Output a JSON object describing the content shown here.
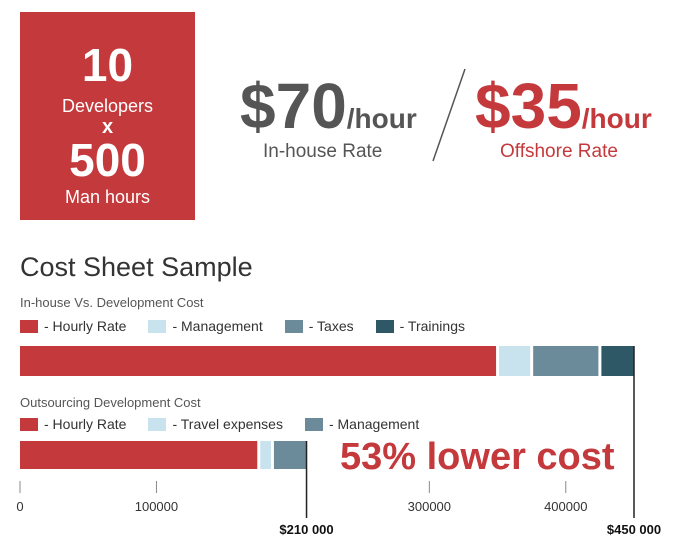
{
  "hero": {
    "developers_count": "10",
    "developers_label": "Developers",
    "multiplier": "x",
    "hours_count": "500",
    "hours_label": "Man hours"
  },
  "rates": {
    "inhouse": {
      "value": "$70",
      "unit": "/hour",
      "label": "In-house Rate"
    },
    "offshore": {
      "value": "$35",
      "unit": "/hour",
      "label": "Offshore Rate"
    }
  },
  "section_title": "Cost Sheet Sample",
  "savings_text": "53% lower cost",
  "colors": {
    "brand_red": "#c4393c",
    "management_light": "#c8e2ee",
    "taxes_slate": "#6b8a9a",
    "trainings_dark": "#2f5866"
  },
  "chart_data": [
    {
      "type": "bar",
      "orientation": "horizontal",
      "stacked": true,
      "title": "In-house Vs. Development Cost",
      "series": [
        {
          "name": "- Hourly Rate",
          "value": 350000,
          "color": "#c4393c"
        },
        {
          "name": "- Management",
          "value": 25000,
          "color": "#c8e2ee"
        },
        {
          "name": "- Taxes",
          "value": 50000,
          "color": "#6b8a9a"
        },
        {
          "name": "- Trainings",
          "value": 25000,
          "color": "#2f5866"
        }
      ],
      "total": 450000,
      "total_label": "$450 000"
    },
    {
      "type": "bar",
      "orientation": "horizontal",
      "stacked": true,
      "title": "Outsourcing Development Cost",
      "series": [
        {
          "name": "- Hourly Rate",
          "value": 175000,
          "color": "#c4393c"
        },
        {
          "name": "- Travel expenses",
          "value": 10000,
          "color": "#c8e2ee"
        },
        {
          "name": "- Management",
          "value": 25000,
          "color": "#6b8a9a"
        }
      ],
      "total": 210000,
      "total_label": "$210 000"
    }
  ],
  "axis": {
    "xlim": [
      0,
      450000
    ],
    "ticks": [
      {
        "value": 0,
        "label": "0"
      },
      {
        "value": 100000,
        "label": "100000"
      },
      {
        "value": 300000,
        "label": "300000"
      },
      {
        "value": 400000,
        "label": "400000"
      }
    ]
  }
}
